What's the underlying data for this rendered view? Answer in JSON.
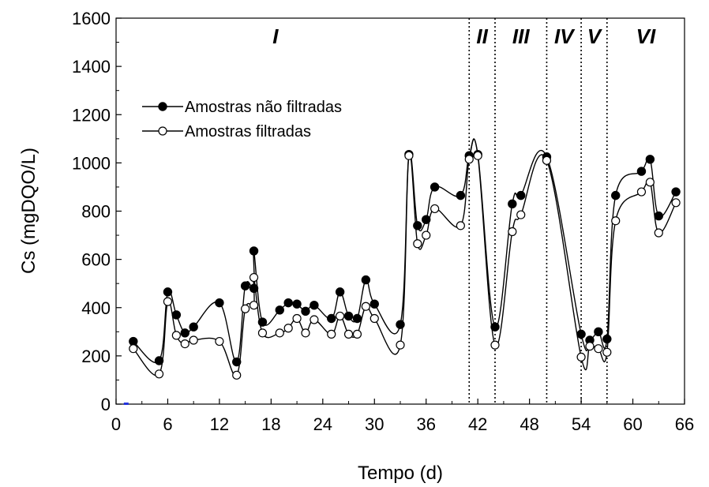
{
  "chart_data": {
    "type": "line",
    "xlabel": "Tempo (d)",
    "ylabel": "Cs (mgDQO/L)",
    "xlim": [
      0,
      66
    ],
    "ylim": [
      0,
      1600
    ],
    "xticks": [
      0,
      6,
      12,
      18,
      24,
      30,
      36,
      42,
      48,
      54,
      60,
      66
    ],
    "yticks": [
      0,
      200,
      400,
      600,
      800,
      1000,
      1200,
      1400,
      1600
    ],
    "grid": false,
    "legend_position": "top-left",
    "phase_boundaries": [
      41,
      44,
      50,
      54,
      57
    ],
    "phases": [
      {
        "label": "I",
        "x": 18.5
      },
      {
        "label": "II",
        "x": 42.5
      },
      {
        "label": "III",
        "x": 47
      },
      {
        "label": "IV",
        "x": 52
      },
      {
        "label": "V",
        "x": 55.5
      },
      {
        "label": "VI",
        "x": 61.5
      }
    ],
    "series": [
      {
        "name": "Amostras não filtradas",
        "marker": "filled",
        "x": [
          2,
          5,
          6,
          7,
          8,
          9,
          12,
          14,
          15,
          16,
          16,
          17,
          19,
          20,
          21,
          22,
          23,
          25,
          26,
          27,
          28,
          29,
          30,
          33,
          34,
          35,
          36,
          37,
          40,
          41,
          42,
          44,
          46,
          47,
          50,
          54,
          55,
          56,
          57,
          58,
          61,
          62,
          63,
          65
        ],
        "y": [
          260,
          180,
          465,
          370,
          295,
          320,
          420,
          175,
          490,
          480,
          635,
          340,
          390,
          420,
          415,
          385,
          410,
          355,
          465,
          365,
          355,
          515,
          415,
          330,
          1035,
          740,
          765,
          900,
          865,
          1030,
          1035,
          320,
          830,
          865,
          1025,
          290,
          265,
          300,
          270,
          865,
          965,
          1015,
          780,
          880
        ]
      },
      {
        "name": "Amostras filtradas",
        "marker": "open",
        "x": [
          2,
          5,
          6,
          7,
          8,
          9,
          12,
          14,
          15,
          16,
          16,
          17,
          19,
          20,
          21,
          22,
          23,
          25,
          26,
          27,
          28,
          29,
          30,
          33,
          34,
          35,
          36,
          37,
          40,
          41,
          42,
          44,
          46,
          47,
          50,
          54,
          55,
          56,
          57,
          58,
          61,
          62,
          63,
          65
        ],
        "y": [
          230,
          125,
          425,
          285,
          250,
          265,
          260,
          120,
          395,
          410,
          525,
          295,
          295,
          315,
          355,
          295,
          350,
          290,
          365,
          290,
          290,
          405,
          355,
          245,
          1030,
          665,
          700,
          810,
          740,
          1015,
          1030,
          245,
          715,
          785,
          1010,
          195,
          240,
          230,
          215,
          760,
          880,
          920,
          710,
          835
        ]
      }
    ]
  }
}
